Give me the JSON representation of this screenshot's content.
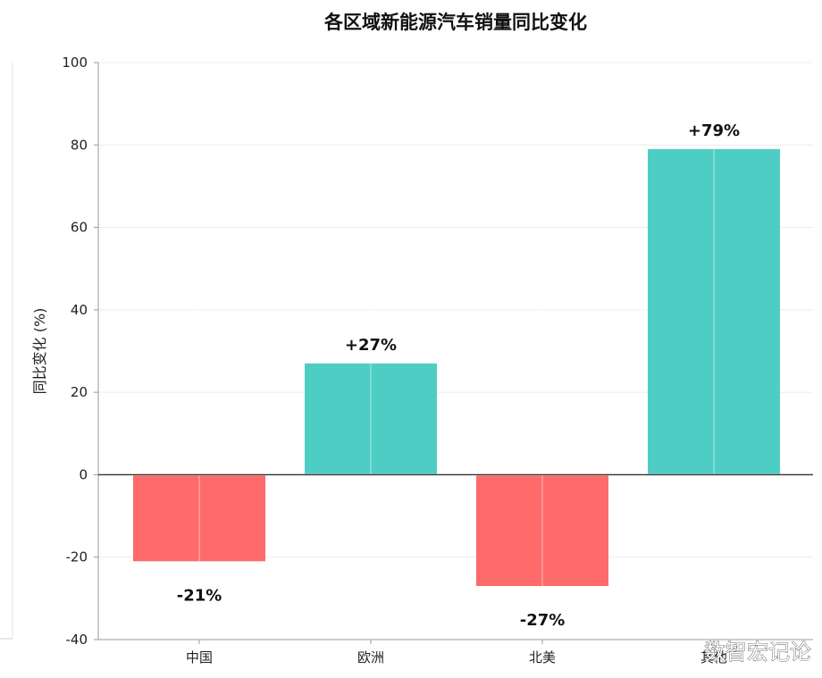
{
  "chart_data": {
    "type": "bar",
    "title": "各区域新能源汽车销量同比变化",
    "ylabel": "同比变化 (%)",
    "xlabel": "",
    "categories": [
      "中国",
      "欧洲",
      "北美",
      "其他"
    ],
    "values": [
      -21,
      27,
      -27,
      79
    ],
    "value_labels": [
      "-21%",
      "+27%",
      "-27%",
      "+79%"
    ],
    "ylim": [
      -40,
      100
    ],
    "yticks": [
      -40,
      -20,
      0,
      20,
      40,
      60,
      80,
      100
    ],
    "grid": true,
    "colors": {
      "positive": "#4ECDC4",
      "negative": "#FF6B6B"
    }
  },
  "watermark": "数智宏记论"
}
